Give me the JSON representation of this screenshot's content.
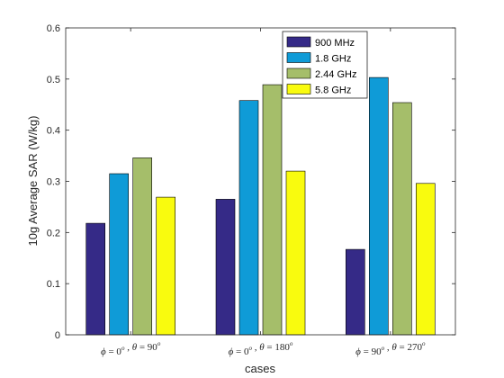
{
  "chart_data": {
    "type": "bar",
    "categories": [
      {
        "phi": "0",
        "theta": "90"
      },
      {
        "phi": "0",
        "theta": "180"
      },
      {
        "phi": "90",
        "theta": "270"
      }
    ],
    "angle_unit": "o",
    "xlabel": "cases",
    "ylabel": "10g Average SAR (W/kg)",
    "ylim": [
      0,
      0.6
    ],
    "yticks": [
      "0",
      "0.1",
      "0.2",
      "0.3",
      "0.4",
      "0.5",
      "0.6"
    ],
    "grid": false,
    "legend_position": "top-right",
    "series": [
      {
        "name": "900 MHz",
        "color": "#352a87",
        "values": [
          0.218,
          0.265,
          0.167
        ]
      },
      {
        "name": "1.8 GHz",
        "color": "#0f9bd7",
        "values": [
          0.315,
          0.458,
          0.503
        ]
      },
      {
        "name": "2.44 GHz",
        "color": "#a5be6a",
        "values": [
          0.346,
          0.489,
          0.454
        ]
      },
      {
        "name": "5.8 GHz",
        "color": "#f9fb0e",
        "values": [
          0.269,
          0.32,
          0.296
        ]
      }
    ]
  }
}
